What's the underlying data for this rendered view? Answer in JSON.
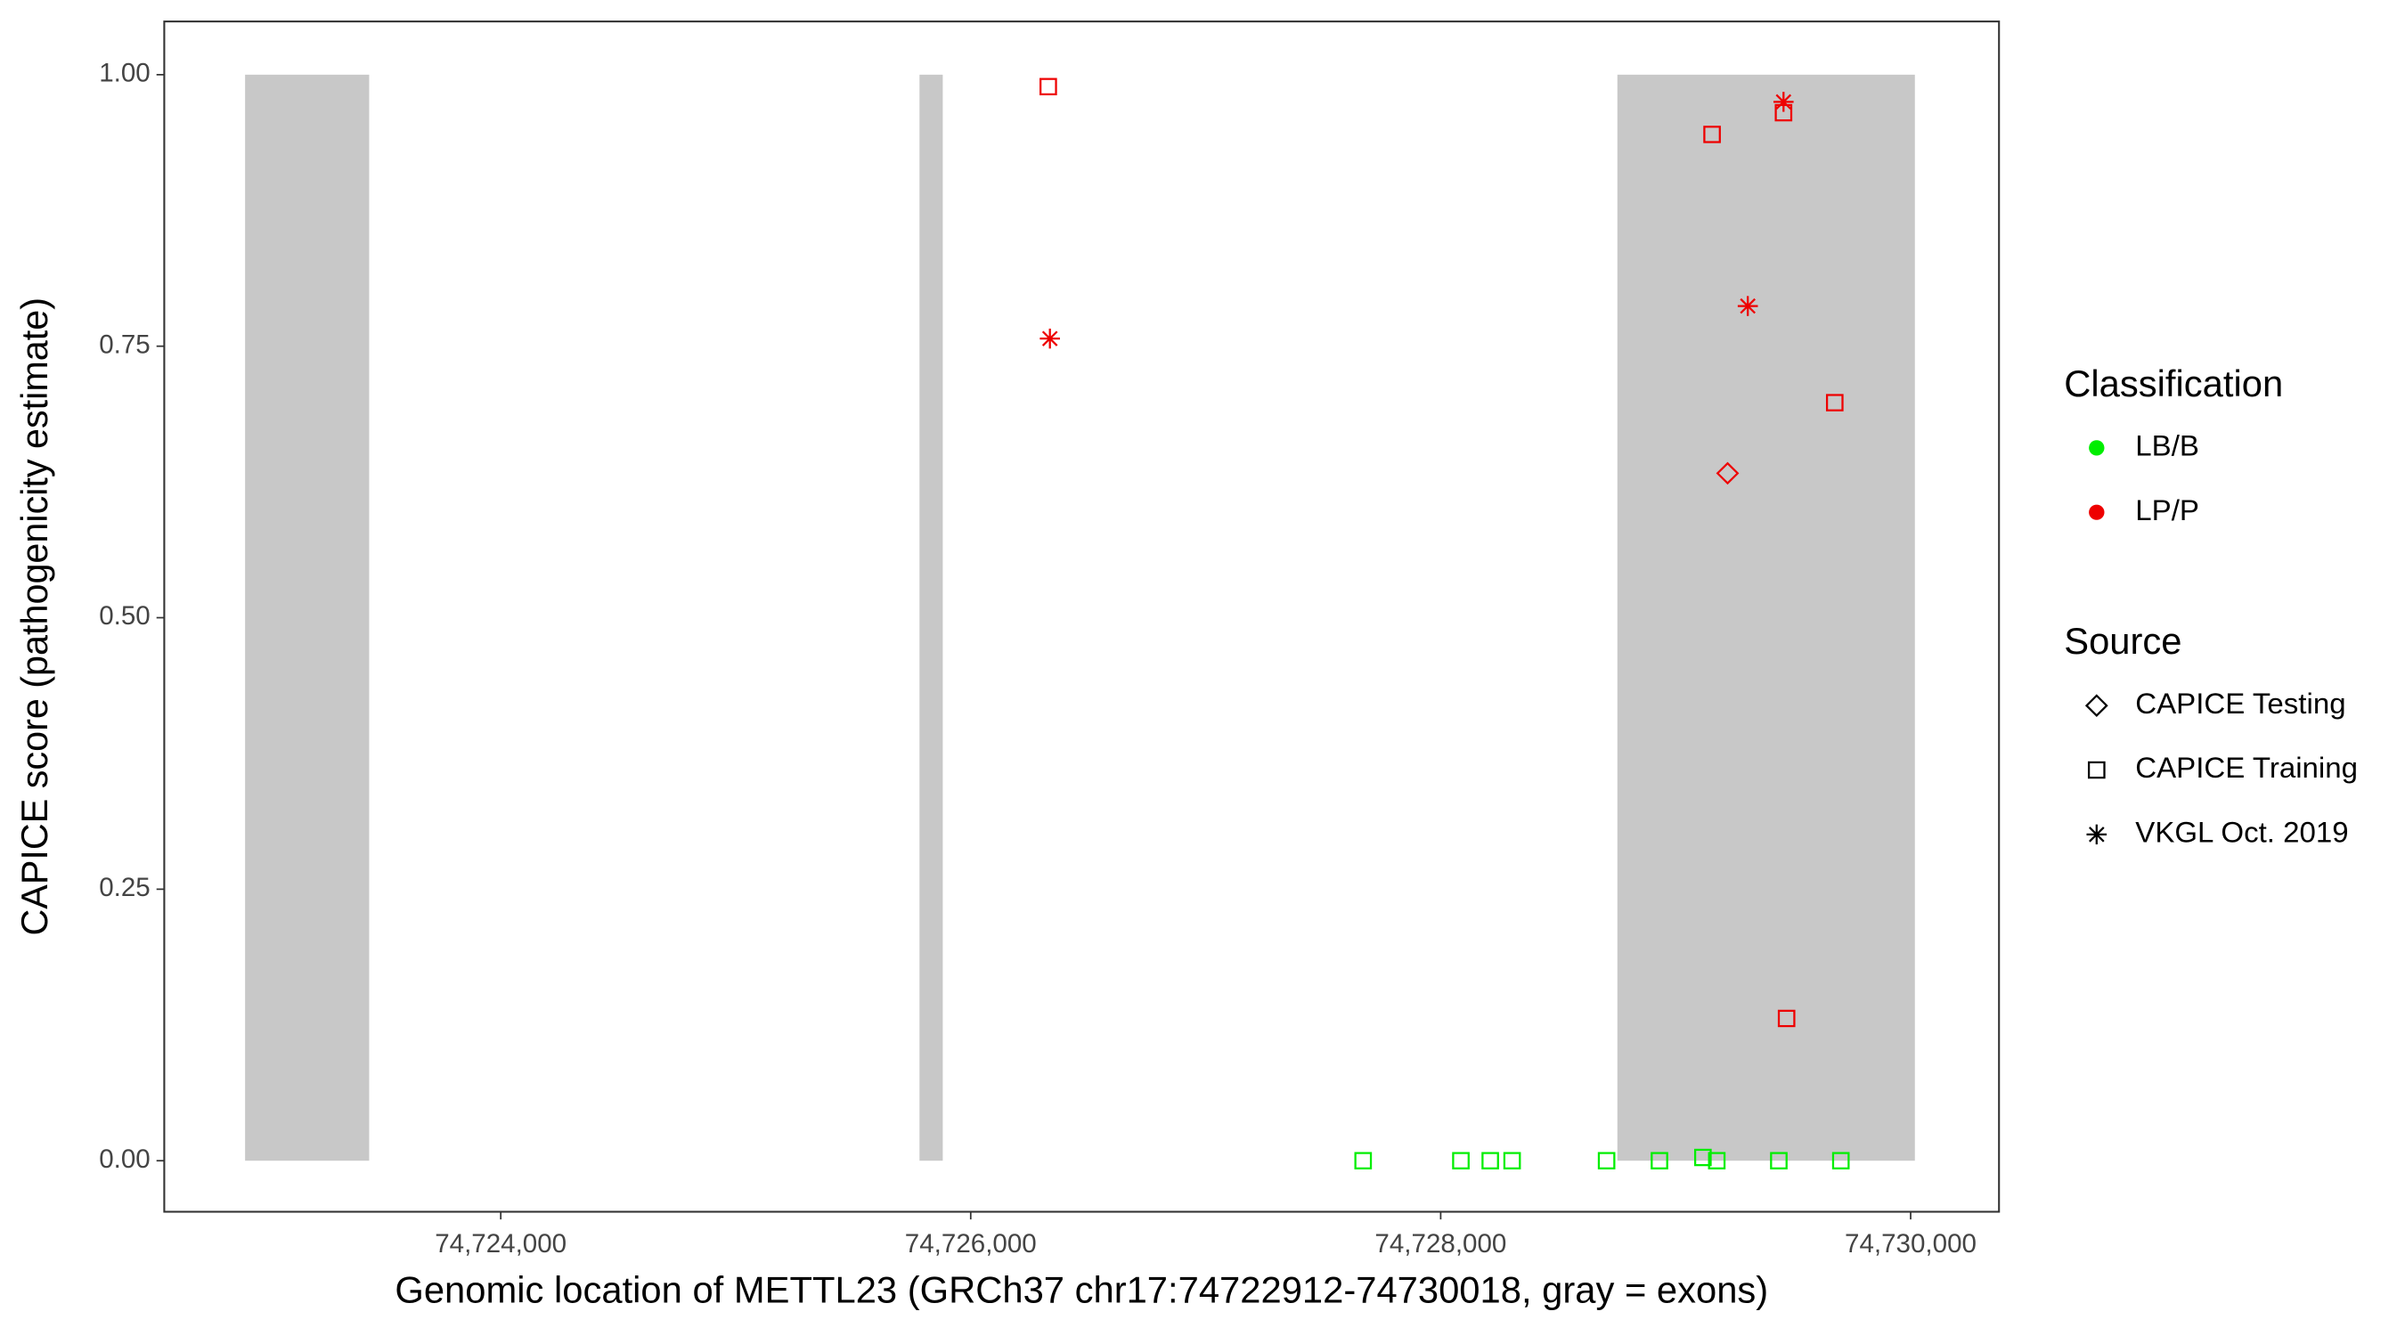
{
  "chart_data": {
    "type": "scatter",
    "x_label": "Genomic location of METTL23 (GRCh37 chr17:74722912-74730018, gray = exons)",
    "y_label": "CAPICE score (pathogenicity estimate)",
    "xlim": [
      74722568,
      74730376
    ],
    "ylim": [
      -0.047,
      1.049
    ],
    "xticks": [
      {
        "value": 74724000,
        "label": "74,724,000"
      },
      {
        "value": 74726000,
        "label": "74,726,000"
      },
      {
        "value": 74728000,
        "label": "74,728,000"
      },
      {
        "value": 74730000,
        "label": "74,730,000"
      }
    ],
    "yticks": [
      {
        "value": 0,
        "label": "0.00"
      },
      {
        "value": 0.25,
        "label": "0.25"
      },
      {
        "value": 0.5,
        "label": "0.50"
      },
      {
        "value": 0.75,
        "label": "0.75"
      },
      {
        "value": 1,
        "label": "1.00"
      }
    ],
    "grid": false,
    "exon_color": "#c8c8c8",
    "exons": [
      {
        "start": 74722912,
        "end": 74723440
      },
      {
        "start": 74725782,
        "end": 74725881
      },
      {
        "start": 74728752,
        "end": 74730018
      }
    ],
    "legend": {
      "classification": {
        "title": "Classification",
        "items": [
          {
            "label": "LB/B",
            "color": "#00ee00"
          },
          {
            "label": "LP/P",
            "color": "#ee0000"
          }
        ]
      },
      "source": {
        "title": "Source",
        "items": [
          {
            "label": "CAPICE Testing",
            "shape": "diamond"
          },
          {
            "label": "CAPICE Training",
            "shape": "square"
          },
          {
            "label": "VKGL Oct. 2019",
            "shape": "asterisk"
          }
        ]
      }
    },
    "series": [
      {
        "classification": "LB/B",
        "source": "CAPICE Training",
        "color": "#00ee00",
        "shape": "square",
        "x": [
          74727670,
          74728086,
          74728211,
          74728304,
          74728706,
          74728931,
          74729116,
          74729175,
          74729439,
          74729703
        ],
        "values": [
          0,
          0,
          0,
          0,
          0,
          0,
          0.003,
          0,
          0,
          0
        ]
      },
      {
        "classification": "LP/P",
        "source": "CAPICE Training",
        "color": "#ee0000",
        "shape": "square",
        "x": [
          74726330,
          74729155,
          74729459,
          74729677,
          74729472
        ],
        "values": [
          0.989,
          0.945,
          0.965,
          0.698,
          0.131
        ]
      },
      {
        "classification": "LP/P",
        "source": "CAPICE Testing",
        "color": "#ee0000",
        "shape": "diamond",
        "x": [
          74729221
        ],
        "values": [
          0.633
        ]
      },
      {
        "classification": "LP/P",
        "source": "VKGL Oct. 2019",
        "color": "#ee0000",
        "shape": "asterisk",
        "x": [
          74726337,
          74729459,
          74729307
        ],
        "values": [
          0.757,
          0.975,
          0.787
        ]
      }
    ]
  }
}
